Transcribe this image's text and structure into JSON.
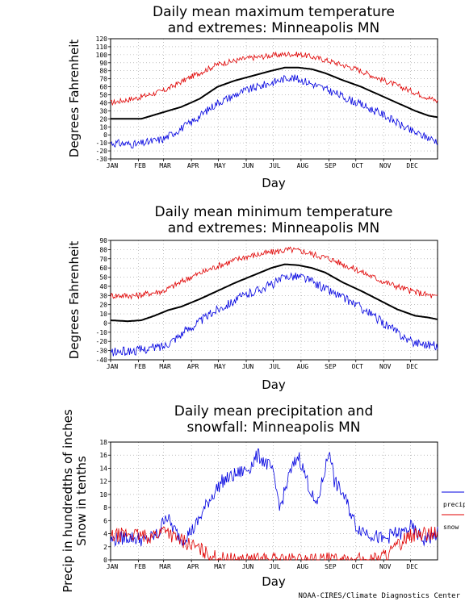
{
  "credit": "NOAA-CIRES/Climate Diagnostics Center",
  "colors": {
    "max_extreme": "#e00000",
    "min_extreme": "#0000e0",
    "mean": "#000000",
    "precip": "#0000e0",
    "snow": "#e00000",
    "grid": "#999999"
  },
  "chart_data": [
    {
      "type": "line",
      "title": [
        "Daily mean maximum temperature",
        "and extremes: Minneapolis MN"
      ],
      "xlabel": "Day",
      "ylabel": "Degrees Fahrenheit",
      "x_tick_labels": [
        "JAN",
        "FEB",
        "MAR",
        "APR",
        "MAY",
        "JUN",
        "JUL",
        "AUG",
        "SEP",
        "OCT",
        "NOV",
        "DEC"
      ],
      "ylim": [
        -30,
        120
      ],
      "y_ticks": [
        -30,
        -20,
        -10,
        0,
        10,
        20,
        30,
        40,
        50,
        60,
        70,
        80,
        90,
        100,
        110,
        120
      ],
      "grid": true,
      "series": [
        {
          "role": "upper-extreme",
          "color": "#e00000",
          "x": [
            1,
            30,
            60,
            90,
            120,
            150,
            180,
            200,
            215,
            245,
            275,
            305,
            335,
            365
          ],
          "values": [
            40,
            46,
            55,
            72,
            88,
            95,
            99,
            101,
            100,
            92,
            82,
            68,
            55,
            42
          ]
        },
        {
          "role": "mean",
          "color": "#000000",
          "x": [
            1,
            20,
            35,
            50,
            65,
            80,
            100,
            120,
            140,
            160,
            180,
            195,
            210,
            225,
            240,
            260,
            280,
            300,
            320,
            340,
            355,
            365
          ],
          "values": [
            20,
            20,
            20,
            25,
            30,
            35,
            45,
            60,
            68,
            74,
            80,
            84,
            84,
            82,
            77,
            68,
            60,
            50,
            40,
            30,
            24,
            22
          ]
        },
        {
          "role": "lower-extreme",
          "color": "#0000e0",
          "x": [
            1,
            30,
            60,
            90,
            120,
            150,
            180,
            200,
            215,
            245,
            275,
            305,
            335,
            365
          ],
          "values": [
            -10,
            -12,
            -5,
            15,
            40,
            55,
            65,
            72,
            68,
            55,
            40,
            25,
            5,
            -8
          ]
        }
      ]
    },
    {
      "type": "line",
      "title": [
        "Daily mean minimum temperature",
        "and extremes: Minneapolis MN"
      ],
      "xlabel": "Day",
      "ylabel": "Degrees Fahrenheit",
      "x_tick_labels": [
        "JAN",
        "FEB",
        "MAR",
        "APR",
        "MAY",
        "JUN",
        "JUL",
        "AUG",
        "SEP",
        "OCT",
        "NOV",
        "DEC"
      ],
      "ylim": [
        -40,
        90
      ],
      "y_ticks": [
        -40,
        -30,
        -20,
        -10,
        0,
        10,
        20,
        30,
        40,
        50,
        60,
        70,
        80,
        90
      ],
      "grid": true,
      "series": [
        {
          "role": "upper-extreme",
          "color": "#e00000",
          "x": [
            1,
            30,
            60,
            90,
            120,
            150,
            180,
            200,
            215,
            245,
            275,
            305,
            335,
            365
          ],
          "values": [
            30,
            30,
            35,
            50,
            62,
            72,
            77,
            80,
            78,
            70,
            58,
            45,
            35,
            28
          ]
        },
        {
          "role": "mean",
          "color": "#000000",
          "x": [
            1,
            20,
            35,
            50,
            65,
            80,
            100,
            120,
            140,
            160,
            180,
            195,
            210,
            225,
            240,
            260,
            280,
            300,
            320,
            340,
            355,
            365
          ],
          "values": [
            3,
            2,
            3,
            8,
            14,
            18,
            26,
            35,
            44,
            52,
            60,
            64,
            63,
            60,
            55,
            44,
            35,
            25,
            15,
            8,
            6,
            4
          ]
        },
        {
          "role": "lower-extreme",
          "color": "#0000e0",
          "x": [
            1,
            30,
            60,
            90,
            120,
            150,
            180,
            200,
            215,
            245,
            275,
            305,
            335,
            365
          ],
          "values": [
            -32,
            -30,
            -25,
            -5,
            15,
            30,
            42,
            52,
            50,
            35,
            20,
            0,
            -20,
            -25
          ]
        }
      ]
    },
    {
      "type": "line",
      "title": [
        "Daily mean precipitation and",
        "snowfall: Minneapolis MN"
      ],
      "xlabel": "Day",
      "ylabel": [
        "Precip in hundredths of inches",
        "Snow in tenths"
      ],
      "x_tick_labels": [
        "JAN",
        "FEB",
        "MAR",
        "APR",
        "MAY",
        "JUN",
        "JUL",
        "AUG",
        "SEP",
        "OCT",
        "NOV",
        "DEC"
      ],
      "ylim": [
        0,
        18
      ],
      "y_ticks": [
        0,
        2,
        4,
        6,
        8,
        10,
        12,
        14,
        16,
        18
      ],
      "grid": true,
      "legend": {
        "placement": "right",
        "entries": [
          "precip",
          "snow"
        ]
      },
      "series": [
        {
          "name": "precip",
          "color": "#0000e0",
          "x": [
            1,
            20,
            40,
            55,
            62,
            70,
            80,
            95,
            110,
            125,
            140,
            155,
            165,
            180,
            190,
            200,
            210,
            220,
            230,
            245,
            250,
            260,
            275,
            290,
            305,
            315,
            325,
            335,
            350,
            365
          ],
          "values": [
            3,
            3.5,
            3,
            4,
            7,
            5,
            3,
            5,
            9,
            12,
            13,
            14,
            16,
            14,
            8,
            13,
            16,
            12,
            8,
            17,
            12,
            10,
            5,
            4,
            3,
            4,
            4,
            5,
            3,
            4
          ]
        },
        {
          "name": "snow",
          "color": "#e00000",
          "x": [
            1,
            20,
            40,
            55,
            62,
            70,
            80,
            95,
            110,
            120,
            130,
            150,
            200,
            250,
            270,
            290,
            300,
            310,
            320,
            330,
            345,
            365
          ],
          "values": [
            3.5,
            4,
            3.5,
            4,
            5,
            3.5,
            3,
            2,
            0.8,
            0.3,
            0,
            0,
            0,
            0,
            0,
            0,
            0.3,
            1,
            2,
            3.5,
            4,
            4
          ]
        }
      ]
    }
  ]
}
